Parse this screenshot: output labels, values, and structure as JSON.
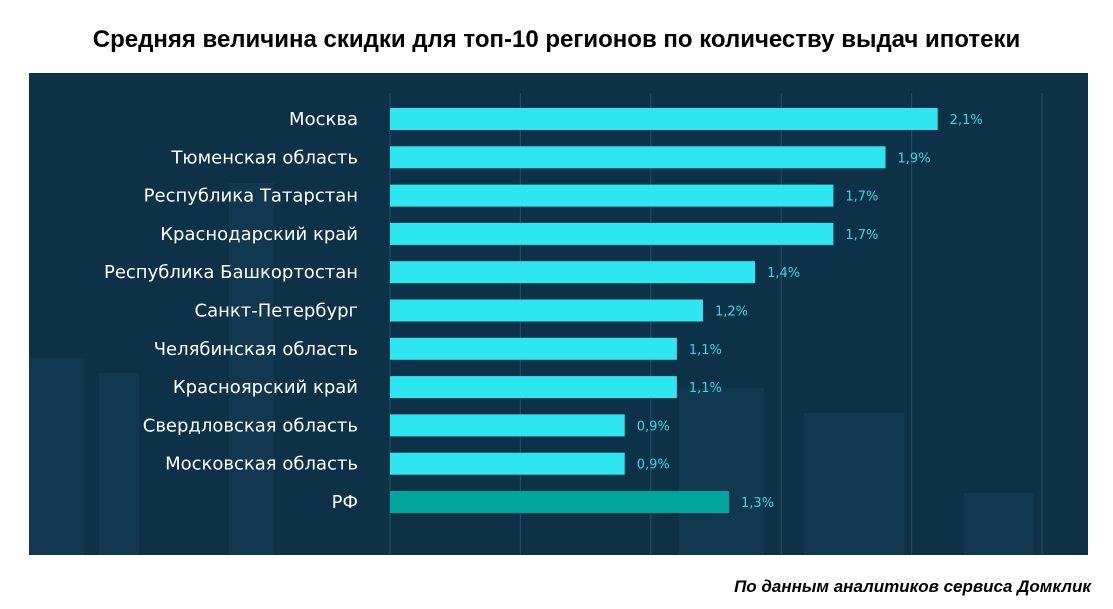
{
  "header": {
    "title": "Средняя величина скидки для топ-10 регионов по количеству выдач ипотеки"
  },
  "footer": {
    "source": "По данным аналитиков сервиса Домклик"
  },
  "colors": {
    "panel": "#0d3248",
    "bar": "#2ee6f0",
    "bar_total": "#00a59c",
    "grid": "#2a4f64",
    "value_text": "#2fd9e6"
  },
  "chart_data": {
    "type": "bar",
    "orientation": "horizontal",
    "title": "Средняя величина скидки для топ-10 регионов по количеству выдач ипотеки",
    "categories": [
      "Москва",
      "Тюменская область",
      "Республика Татарстан",
      "Краснодарский край",
      "Республика Башкортостан",
      "Санкт-Петербург",
      "Челябинская область",
      "Красноярский край",
      "Свердловская область",
      "Московская область",
      "РФ"
    ],
    "values": [
      2.1,
      1.9,
      1.7,
      1.7,
      1.4,
      1.2,
      1.1,
      1.1,
      0.9,
      0.9,
      1.3
    ],
    "value_labels": [
      "2,1%",
      "1,9%",
      "1,7%",
      "1,7%",
      "1,4%",
      "1,2%",
      "1,1%",
      "1,1%",
      "0,9%",
      "0,9%",
      "1,3%"
    ],
    "highlight_category": "РФ",
    "xlim": [
      0,
      2.5
    ],
    "grid": true,
    "legend": "none"
  }
}
